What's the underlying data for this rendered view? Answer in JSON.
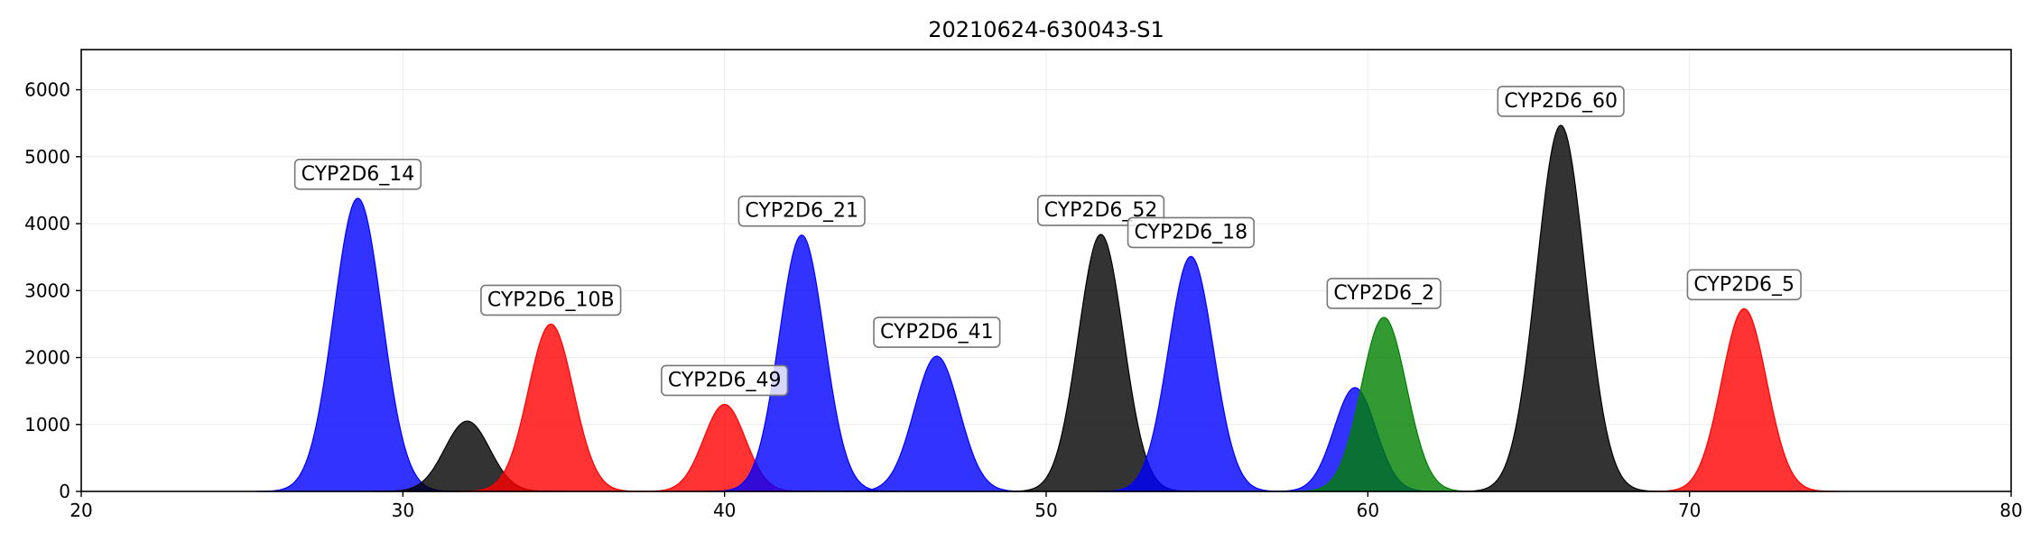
{
  "chart_data": {
    "type": "area",
    "title": "20210624-630043-S1",
    "xlabel": "",
    "ylabel": "",
    "xlim": [
      20,
      80
    ],
    "ylim": [
      0,
      6600
    ],
    "xticks": [
      20,
      30,
      40,
      50,
      60,
      70,
      80
    ],
    "yticks": [
      0,
      1000,
      2000,
      3000,
      4000,
      5000,
      6000
    ],
    "grid": true,
    "colors": {
      "blue": "#0000ff",
      "black": "#000000",
      "red": "#ff0000",
      "green": "#008000"
    },
    "peaks": [
      {
        "center": 28.6,
        "height": 4380,
        "sigma": 0.75,
        "color": "blue",
        "label": "CYP2D6_14"
      },
      {
        "center": 32.0,
        "height": 1050,
        "sigma": 0.7,
        "color": "black",
        "label": ""
      },
      {
        "center": 34.6,
        "height": 2500,
        "sigma": 0.7,
        "color": "red",
        "label": "CYP2D6_10B"
      },
      {
        "center": 40.0,
        "height": 1300,
        "sigma": 0.65,
        "color": "red",
        "label": "CYP2D6_49"
      },
      {
        "center": 42.4,
        "height": 3830,
        "sigma": 0.7,
        "color": "blue",
        "label": "CYP2D6_21"
      },
      {
        "center": 46.6,
        "height": 2020,
        "sigma": 0.7,
        "color": "blue",
        "label": "CYP2D6_41"
      },
      {
        "center": 51.7,
        "height": 3840,
        "sigma": 0.7,
        "color": "black",
        "label": "CYP2D6_52"
      },
      {
        "center": 54.5,
        "height": 3510,
        "sigma": 0.7,
        "color": "blue",
        "label": "CYP2D6_18"
      },
      {
        "center": 59.6,
        "height": 1550,
        "sigma": 0.65,
        "color": "blue",
        "label": ""
      },
      {
        "center": 60.5,
        "height": 2600,
        "sigma": 0.7,
        "color": "green",
        "label": "CYP2D6_2"
      },
      {
        "center": 66.0,
        "height": 5470,
        "sigma": 0.75,
        "color": "black",
        "label": "CYP2D6_60"
      },
      {
        "center": 71.7,
        "height": 2730,
        "sigma": 0.7,
        "color": "red",
        "label": "CYP2D6_5"
      }
    ]
  }
}
